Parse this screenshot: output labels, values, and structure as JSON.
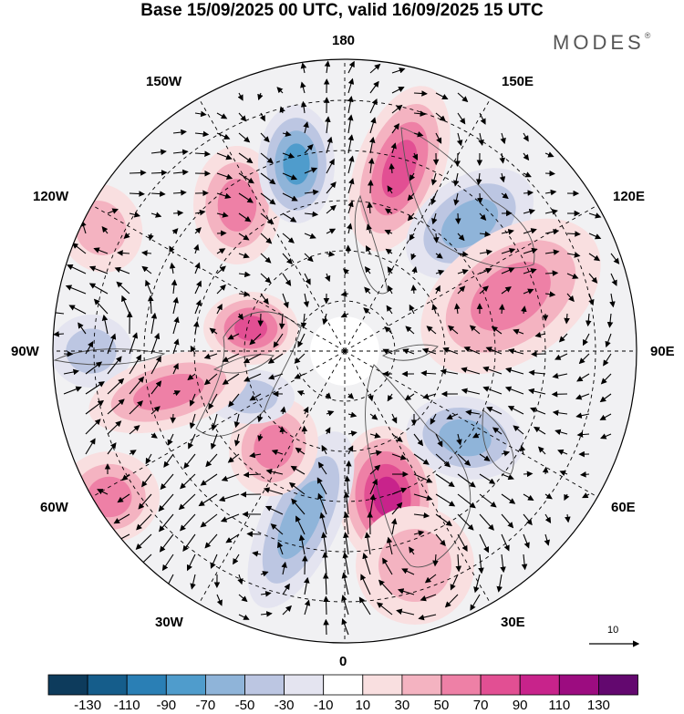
{
  "title": "Base 15/09/2025 00 UTC, valid 16/09/2025 15 UTC",
  "brand": {
    "name": "MODES",
    "mark": "®"
  },
  "map": {
    "projection": "north polar stereographic",
    "longitude_labels": {
      "top": "180",
      "bottom": "0",
      "left": "90W",
      "right": "90E",
      "upper_left_1": "150W",
      "upper_left_2": "120W",
      "upper_right_1": "150E",
      "upper_right_2": "120E",
      "lower_left_1": "60W",
      "lower_left_2": "30W",
      "lower_right_1": "60E",
      "lower_right_2": "30E"
    }
  },
  "reference_vector": {
    "label": "10"
  },
  "colorbar": {
    "labels": [
      "-130",
      "-110",
      "-90",
      "-70",
      "-50",
      "-30",
      "-10",
      "10",
      "30",
      "50",
      "70",
      "90",
      "110",
      "130"
    ],
    "colors": [
      "#0d3b5c",
      "#155d8b",
      "#2a7fb5",
      "#4f9ccc",
      "#8fb4d9",
      "#bcc6e2",
      "#e4e4f0",
      "#ffffff",
      "#f9dfe0",
      "#f4b3c1",
      "#ee80a6",
      "#e24f93",
      "#c8238b",
      "#9c0c80",
      "#63086f"
    ]
  },
  "anomalies": [
    {
      "name": "positive",
      "value": 70
    },
    {
      "name": "positive",
      "value": 50
    },
    {
      "name": "negative",
      "value": -70
    },
    {
      "name": "negative",
      "value": -50
    },
    {
      "name": "positive",
      "value": 50
    },
    {
      "name": "positive",
      "value": 90
    },
    {
      "name": "negative",
      "value": -50
    },
    {
      "name": "positive",
      "value": 70
    },
    {
      "name": "positive",
      "value": 50
    },
    {
      "name": "negative",
      "value": -30
    },
    {
      "name": "negative",
      "value": -50
    },
    {
      "name": "positive",
      "value": 50
    },
    {
      "name": "positive",
      "value": 30
    },
    {
      "name": "negative",
      "value": -30
    },
    {
      "name": "positive",
      "value": 50
    },
    {
      "name": "positive",
      "value": 30
    }
  ]
}
